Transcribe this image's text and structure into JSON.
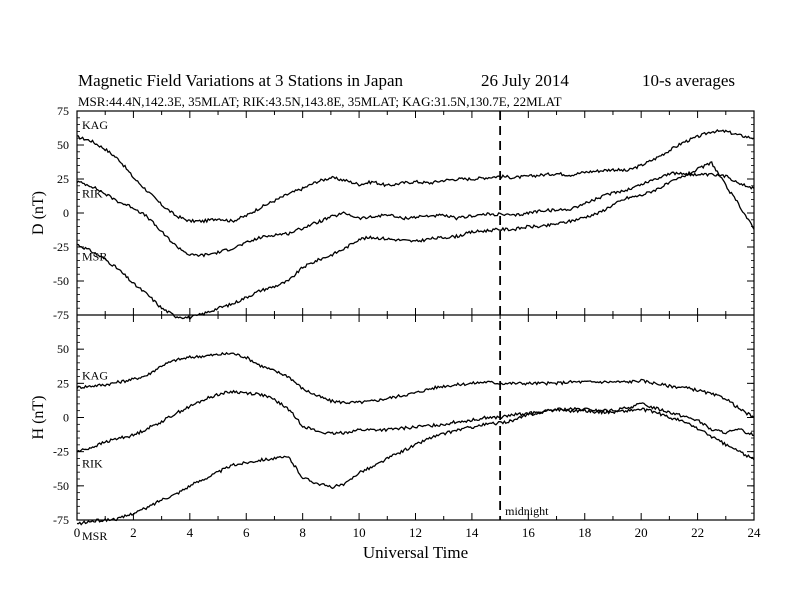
{
  "header": {
    "title": "Magnetic Field Variations at 3 Stations in Japan",
    "date": "26 July      2014",
    "averaging": "10-s averages",
    "subtitle": "MSR:44.4N,142.3E, 35MLAT;  RIK:43.5N,143.8E, 35MLAT;  KAG:31.5N,130.7E, 22MLAT"
  },
  "chart_data": [
    {
      "type": "line",
      "panel": "top",
      "ylabel": "D (nT)",
      "ylim": [
        -75,
        75
      ],
      "yticks": [
        75,
        50,
        25,
        0,
        -25,
        -50,
        -75
      ],
      "xlim": [
        0,
        24
      ],
      "series": [
        {
          "name": "KAG",
          "x": [
            0,
            0.5,
            1,
            1.5,
            2,
            2.5,
            3,
            3.5,
            4,
            4.5,
            5,
            5.5,
            6,
            6.5,
            7,
            7.5,
            8,
            8.5,
            9,
            9.5,
            10,
            10.5,
            11,
            11.5,
            12,
            12.5,
            13,
            13.5,
            14,
            14.5,
            15,
            15.5,
            16,
            16.5,
            17,
            17.5,
            18,
            18.5,
            19,
            19.5,
            20,
            20.5,
            21,
            21.5,
            22,
            22.5,
            23,
            23.5,
            24
          ],
          "values": [
            56,
            53,
            47,
            39,
            26,
            16,
            6,
            -2,
            -6,
            -6,
            -4,
            -6,
            -2,
            4,
            9,
            14,
            18,
            23,
            26,
            24,
            21,
            23,
            20,
            22,
            23,
            22,
            24,
            25,
            25,
            26,
            27,
            26,
            27,
            28,
            29,
            28,
            30,
            31,
            32,
            31,
            35,
            40,
            46,
            52,
            56,
            60,
            60,
            57,
            55
          ]
        },
        {
          "name": "RIK",
          "x": [
            0,
            0.5,
            1,
            1.5,
            2,
            2.5,
            3,
            3.5,
            4,
            4.5,
            5,
            5.5,
            6,
            6.5,
            7,
            7.5,
            8,
            8.5,
            9,
            9.5,
            10,
            10.5,
            11,
            11.5,
            12,
            12.5,
            13,
            13.5,
            14,
            14.5,
            15,
            15.5,
            16,
            16.5,
            17,
            17.5,
            18,
            18.5,
            19,
            19.5,
            20,
            20.5,
            21,
            21.5,
            22,
            22.5,
            23,
            23.5,
            24
          ],
          "values": [
            23,
            20,
            14,
            8,
            4,
            -3,
            -14,
            -24,
            -31,
            -31,
            -29,
            -26,
            -22,
            -18,
            -16,
            -15,
            -11,
            -7,
            -3,
            0,
            -4,
            -3,
            -1,
            -4,
            -3,
            -2,
            -2,
            -4,
            -2,
            -1,
            -1,
            -2,
            0,
            2,
            2,
            3,
            7,
            11,
            15,
            17,
            21,
            25,
            29,
            29,
            28,
            28,
            27,
            22,
            18
          ]
        },
        {
          "name": "MSR",
          "x": [
            0,
            0.5,
            1,
            1.5,
            2,
            2.5,
            3,
            3.5,
            4,
            4.5,
            5,
            5.5,
            6,
            6.5,
            7,
            7.5,
            8,
            8.5,
            9,
            9.5,
            10,
            10.5,
            11,
            11.5,
            12,
            12.5,
            13,
            13.5,
            14,
            14.5,
            15,
            15.5,
            16,
            16.5,
            17,
            17.5,
            18,
            18.5,
            19,
            19.5,
            20,
            20.5,
            21,
            21.5,
            22,
            22.5,
            23,
            23.5,
            24
          ],
          "values": [
            -23,
            -28,
            -34,
            -42,
            -52,
            -60,
            -70,
            -76,
            -77,
            -74,
            -70,
            -67,
            -62,
            -57,
            -54,
            -50,
            -40,
            -35,
            -31,
            -26,
            -19,
            -18,
            -19,
            -20,
            -21,
            -19,
            -18,
            -17,
            -14,
            -13,
            -12,
            -12,
            -10,
            -10,
            -8,
            -6,
            -3,
            0,
            6,
            11,
            13,
            17,
            22,
            27,
            32,
            37,
            20,
            5,
            -12
          ]
        }
      ]
    },
    {
      "type": "line",
      "panel": "bottom",
      "ylabel": "H (nT)",
      "xlabel": "Universal Time",
      "ylim": [
        -75,
        75
      ],
      "yticks": [
        50,
        25,
        0,
        -25,
        -50,
        -75
      ],
      "xlim": [
        0,
        24
      ],
      "xticks": [
        0,
        2,
        4,
        6,
        8,
        10,
        12,
        14,
        16,
        18,
        20,
        22,
        24
      ],
      "annotation": {
        "x": 15,
        "label": "midnight"
      },
      "series": [
        {
          "name": "KAG",
          "x": [
            0,
            0.5,
            1,
            1.5,
            2,
            2.5,
            3,
            3.5,
            4,
            4.5,
            5,
            5.5,
            6,
            6.5,
            7,
            7.5,
            8,
            8.5,
            9,
            9.5,
            10,
            10.5,
            11,
            11.5,
            12,
            12.5,
            13,
            13.5,
            14,
            14.5,
            15,
            15.5,
            16,
            16.5,
            17,
            17.5,
            18,
            18.5,
            19,
            19.5,
            20,
            20.5,
            21,
            21.5,
            22,
            22.5,
            23,
            23.5,
            24
          ],
          "values": [
            22,
            23,
            24,
            26,
            28,
            31,
            38,
            42,
            44,
            45,
            46,
            47,
            44,
            38,
            34,
            30,
            21,
            16,
            12,
            11,
            11,
            12,
            14,
            16,
            18,
            21,
            23,
            24,
            25,
            26,
            25,
            25,
            25,
            25,
            25,
            26,
            26,
            26,
            26,
            26,
            27,
            25,
            23,
            22,
            20,
            17,
            14,
            6,
            0
          ]
        },
        {
          "name": "RIK",
          "x": [
            0,
            0.5,
            1,
            1.5,
            2,
            2.5,
            3,
            3.5,
            4,
            4.5,
            5,
            5.5,
            6,
            6.5,
            7,
            7.5,
            8,
            8.5,
            9,
            9.5,
            10,
            10.5,
            11,
            11.5,
            12,
            12.5,
            13,
            13.5,
            14,
            14.5,
            15,
            15.5,
            16,
            16.5,
            17,
            17.5,
            18,
            18.5,
            19,
            19.5,
            20,
            20.5,
            21,
            21.5,
            22,
            22.5,
            23,
            23.5,
            24
          ],
          "values": [
            -25,
            -22,
            -18,
            -15,
            -13,
            -8,
            -3,
            3,
            8,
            13,
            17,
            19,
            18,
            17,
            13,
            6,
            -6,
            -10,
            -12,
            -11,
            -9,
            -9,
            -9,
            -8,
            -7,
            -6,
            -5,
            -3,
            -2,
            0,
            0,
            2,
            3,
            4,
            6,
            6,
            6,
            5,
            5,
            7,
            10,
            7,
            4,
            1,
            -2,
            -9,
            -11,
            -9,
            -13
          ]
        },
        {
          "name": "MSR",
          "x": [
            0,
            0.5,
            1,
            1.5,
            2,
            2.5,
            3,
            3.5,
            4,
            4.5,
            5,
            5.5,
            6,
            6.5,
            7,
            7.5,
            8,
            8.5,
            9,
            9.5,
            10,
            10.5,
            11,
            11.5,
            12,
            12.5,
            13,
            13.5,
            14,
            14.5,
            15,
            15.5,
            16,
            16.5,
            17,
            17.5,
            18,
            18.5,
            19,
            19.5,
            20,
            20.5,
            21,
            21.5,
            22,
            22.5,
            23,
            23.5,
            24
          ],
          "values": [
            -78,
            -76,
            -75,
            -74,
            -70,
            -66,
            -60,
            -56,
            -50,
            -45,
            -40,
            -35,
            -33,
            -31,
            -30,
            -29,
            -44,
            -48,
            -51,
            -49,
            -40,
            -36,
            -30,
            -25,
            -20,
            -15,
            -12,
            -9,
            -7,
            -5,
            -4,
            -2,
            2,
            4,
            6,
            5,
            5,
            4,
            4,
            5,
            6,
            4,
            0,
            -3,
            -8,
            -14,
            -20,
            -25,
            -31
          ]
        }
      ]
    }
  ]
}
